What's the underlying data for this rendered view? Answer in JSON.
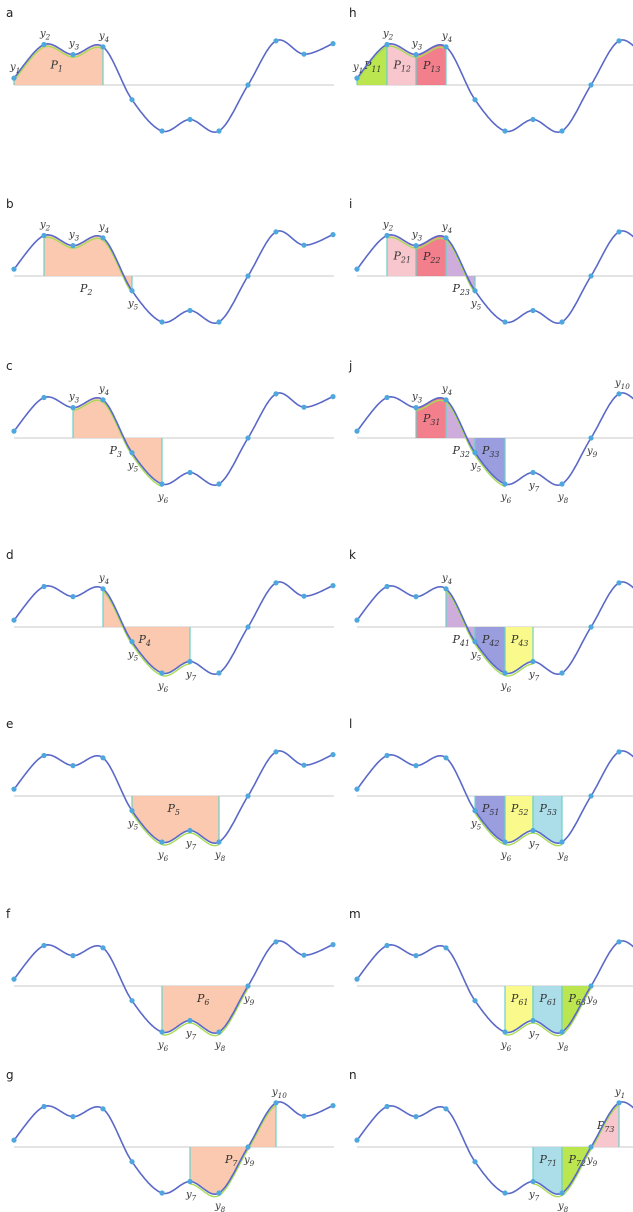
{
  "colors": {
    "curve": "#5a68c8",
    "axis": "#c8c8c8",
    "dot": "#4ea8de",
    "fitted": "#a8dc58",
    "edge": "#6cd0c8",
    "label": "#333333",
    "fills": {
      "peach": "#f9c3a6",
      "green": "#b4e33d",
      "pink": "#f7c1c9",
      "red": "#f2707f",
      "purple": "#c9a3d8",
      "blue": "#8f93dc",
      "yellow": "#fafa80",
      "cyan": "#a3dae8"
    }
  },
  "panels": [
    {
      "id": "a",
      "regions": [
        {
          "x0": 0,
          "x1": 3,
          "fill": "peach",
          "P": "1",
          "edge": "right"
        }
      ],
      "ylabels": [
        "1",
        "2",
        "3",
        "4"
      ]
    },
    {
      "id": "b",
      "regions": [
        {
          "x0": 1,
          "x1": 4,
          "fill": "peach",
          "P": "2",
          "edge": "both"
        }
      ],
      "ylabels": [
        "2",
        "3",
        "4",
        "5"
      ]
    },
    {
      "id": "c",
      "regions": [
        {
          "x0": 2,
          "x1": 5,
          "fill": "peach",
          "P": "3",
          "edge": "both"
        }
      ],
      "ylabels": [
        "3",
        "4",
        "5",
        "6"
      ]
    },
    {
      "id": "d",
      "regions": [
        {
          "x0": 3,
          "x1": 6,
          "fill": "peach",
          "P": "4",
          "edge": "both"
        }
      ],
      "ylabels": [
        "4",
        "5",
        "6",
        "7"
      ]
    },
    {
      "id": "e",
      "regions": [
        {
          "x0": 4,
          "x1": 7,
          "fill": "peach",
          "P": "5",
          "edge": "both"
        }
      ],
      "ylabels": [
        "5",
        "6",
        "7",
        "8"
      ]
    },
    {
      "id": "f",
      "regions": [
        {
          "x0": 5,
          "x1": 8,
          "fill": "peach",
          "P": "6",
          "edge": "both"
        }
      ],
      "ylabels": [
        "6",
        "7",
        "8",
        "9"
      ]
    },
    {
      "id": "g",
      "regions": [
        {
          "x0": 6,
          "x1": 9,
          "fill": "peach",
          "P": "7",
          "edge": "both"
        }
      ],
      "ylabels": [
        "7",
        "8",
        "9",
        "10"
      ]
    },
    {
      "id": "h",
      "regions": [
        {
          "x0": 0,
          "x1": 1,
          "fill": "green",
          "P": "11"
        },
        {
          "x0": 1,
          "x1": 2,
          "fill": "pink",
          "P": "12"
        },
        {
          "x0": 2,
          "x1": 3,
          "fill": "red",
          "P": "13"
        }
      ],
      "ylabels": [
        "1",
        "2",
        "3",
        "4"
      ]
    },
    {
      "id": "i",
      "regions": [
        {
          "x0": 1,
          "x1": 2,
          "fill": "pink",
          "P": "21"
        },
        {
          "x0": 2,
          "x1": 3,
          "fill": "red",
          "P": "22"
        },
        {
          "x0": 3,
          "x1": 4,
          "fill": "purple",
          "P": "23"
        }
      ],
      "ylabels": [
        "2",
        "3",
        "4",
        "5"
      ]
    },
    {
      "id": "j",
      "regions": [
        {
          "x0": 2,
          "x1": 3,
          "fill": "red",
          "P": "31"
        },
        {
          "x0": 3,
          "x1": 4,
          "fill": "purple",
          "P": "32"
        },
        {
          "x0": 4,
          "x1": 5,
          "fill": "blue",
          "P": "33"
        }
      ],
      "ylabels": [
        "3",
        "4",
        "5",
        "6",
        "7",
        "8",
        "9",
        "10"
      ]
    },
    {
      "id": "k",
      "regions": [
        {
          "x0": 3,
          "x1": 4,
          "fill": "purple",
          "P": "41"
        },
        {
          "x0": 4,
          "x1": 5,
          "fill": "blue",
          "P": "42"
        },
        {
          "x0": 5,
          "x1": 6,
          "fill": "yellow",
          "P": "43"
        }
      ],
      "ylabels": [
        "4",
        "5",
        "6",
        "7"
      ]
    },
    {
      "id": "l",
      "regions": [
        {
          "x0": 4,
          "x1": 5,
          "fill": "blue",
          "P": "51"
        },
        {
          "x0": 5,
          "x1": 6,
          "fill": "yellow",
          "P": "52"
        },
        {
          "x0": 6,
          "x1": 7,
          "fill": "cyan",
          "P": "53"
        }
      ],
      "ylabels": [
        "5",
        "6",
        "7",
        "8"
      ]
    },
    {
      "id": "m",
      "regions": [
        {
          "x0": 5,
          "x1": 6,
          "fill": "yellow",
          "P": "61"
        },
        {
          "x0": 6,
          "x1": 7,
          "fill": "cyan",
          "P": "61"
        },
        {
          "x0": 7,
          "x1": 8,
          "fill": "green",
          "P": "63"
        }
      ],
      "ylabels": [
        "6",
        "7",
        "8",
        "9"
      ]
    },
    {
      "id": "n",
      "regions": [
        {
          "x0": 6,
          "x1": 7,
          "fill": "cyan",
          "P": "71"
        },
        {
          "x0": 7,
          "x1": 8,
          "fill": "green",
          "P": "72"
        },
        {
          "x0": 8,
          "x1": 9,
          "fill": "pink",
          "P": "73"
        }
      ],
      "ylabels": [
        "7",
        "8",
        "9",
        "1"
      ]
    }
  ]
}
